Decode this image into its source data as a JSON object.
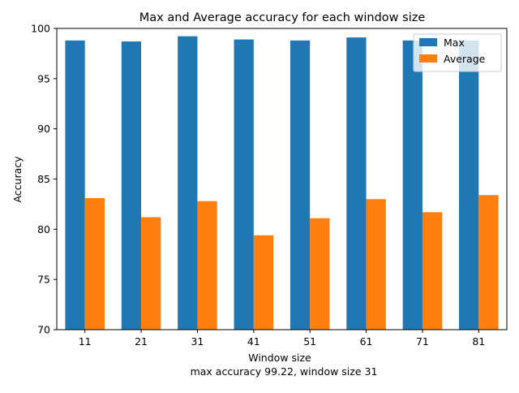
{
  "chart_data": {
    "type": "bar",
    "title": "Max and Average accuracy for each window size",
    "xlabel": "Window size",
    "caption": "max accuracy 99.22, window size 31",
    "ylabel": "Accuracy",
    "categories": [
      "11",
      "21",
      "31",
      "41",
      "51",
      "61",
      "71",
      "81"
    ],
    "ylim": [
      70,
      100
    ],
    "yticks": [
      70,
      75,
      80,
      85,
      90,
      95,
      100
    ],
    "grid": false,
    "legend_position": "top-right",
    "series": [
      {
        "name": "Max",
        "color": "#1f77b4",
        "values": [
          98.8,
          98.7,
          99.22,
          98.9,
          98.8,
          99.1,
          98.8,
          98.8
        ]
      },
      {
        "name": "Average",
        "color": "#ff7f0e",
        "values": [
          83.1,
          81.2,
          82.8,
          79.4,
          81.1,
          83.0,
          81.7,
          83.4
        ]
      }
    ]
  }
}
